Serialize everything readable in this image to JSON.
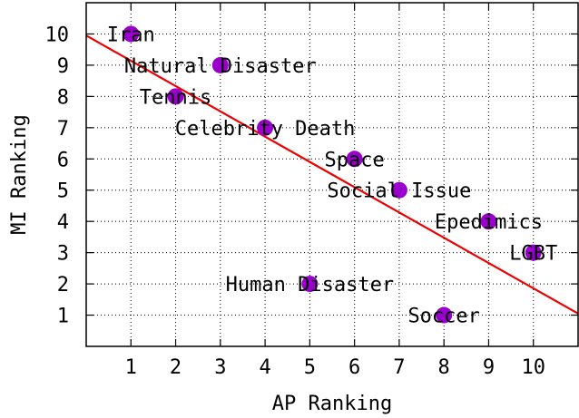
{
  "chart_data": {
    "type": "scatter",
    "title": "",
    "xlabel": "AP Ranking",
    "ylabel": "MI Ranking",
    "xlim": [
      0,
      11
    ],
    "ylim": [
      0,
      11
    ],
    "xticks": [
      "1",
      "2",
      "3",
      "4",
      "5",
      "6",
      "7",
      "8",
      "9",
      "10"
    ],
    "yticks": [
      "1",
      "2",
      "3",
      "4",
      "5",
      "6",
      "7",
      "8",
      "9",
      "10"
    ],
    "grid": true,
    "colors": {
      "point": "#9900cc",
      "fit_line": "#ee0000"
    },
    "points": [
      {
        "label": "Iran",
        "x": 1,
        "y": 10
      },
      {
        "label": "Natural Disaster",
        "x": 3,
        "y": 9
      },
      {
        "label": "Tennis",
        "x": 2,
        "y": 8
      },
      {
        "label": "Celebrity Death",
        "x": 4,
        "y": 7
      },
      {
        "label": "Space",
        "x": 6,
        "y": 6
      },
      {
        "label": "Social Issue",
        "x": 7,
        "y": 5
      },
      {
        "label": "Epedimics",
        "x": 9,
        "y": 4
      },
      {
        "label": "LGBT",
        "x": 10,
        "y": 3
      },
      {
        "label": "Human Disaster",
        "x": 5,
        "y": 2
      },
      {
        "label": "Soccer",
        "x": 8,
        "y": 1
      }
    ],
    "fit_line": {
      "x": [
        0,
        11
      ],
      "y": [
        9.95,
        1.05
      ]
    }
  }
}
